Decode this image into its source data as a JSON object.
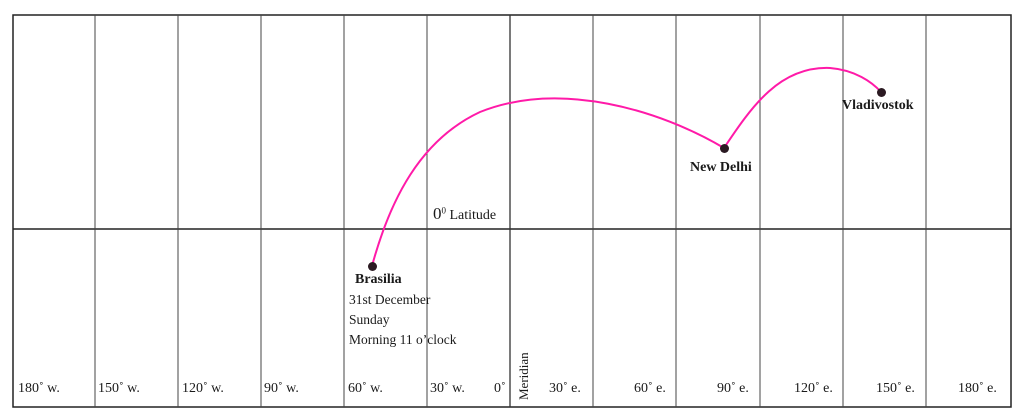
{
  "diagram": {
    "longitudes": [
      "180˚ w.",
      "150˚ w.",
      "120˚ w.",
      "90˚ w.",
      "60˚ w.",
      "30˚ w.",
      "0˚",
      "30˚ e.",
      "60˚ e.",
      "90˚ e.",
      "120˚ e.",
      "150˚ e.",
      "180˚ e."
    ],
    "equator_label": "0",
    "equator_degree": "0",
    "equator_text": "Latitude",
    "meridian_label": "Meridian",
    "cities": {
      "brasilia": "Brasilia",
      "new_delhi": "New Delhi",
      "vladivostok": "Vladivostok"
    },
    "note_lines": [
      "31st December",
      "Sunday",
      "Morning 11 o’clock"
    ],
    "route_color": "#ff1aa8"
  }
}
